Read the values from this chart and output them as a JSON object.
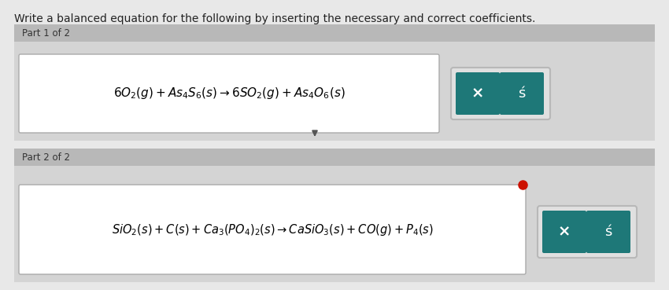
{
  "title": "Write a balanced equation for the following by inserting the necessary and correct coefficients.",
  "title_fontsize": 10.0,
  "bg_color": "#b8b8b8",
  "outer_bg": "#e8e8e8",
  "panel_color": "#c8c8c8",
  "inner_panel_color": "#d4d4d4",
  "box_color": "#ffffff",
  "teal_color": "#1e7878",
  "btn_outline_color": "#d0d0d0",
  "btn_bg_color": "#e0e0e0",
  "part1_label": "Part 1 of 2",
  "part2_label": "Part 2 of 2",
  "eq1_text": "$6O_2(g) + As_4S_6(s) \\rightarrow 6SO_2(g) + As_4O_6(s)$",
  "eq2_text": "$SiO_2(s) + C(s) + Ca_3(PO_4)_2(s) \\rightarrow CaSiO_3(s) + CO(g) + P_4(s)$"
}
